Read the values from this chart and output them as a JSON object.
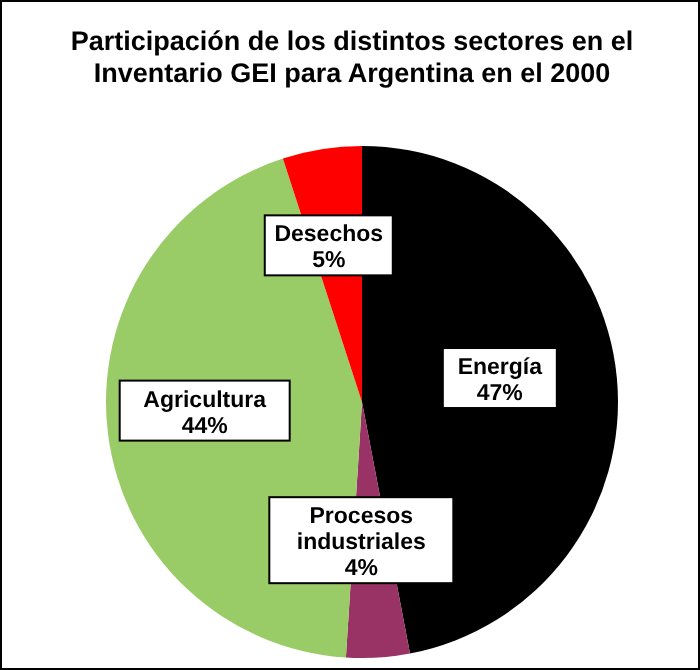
{
  "chart_data": {
    "type": "pie",
    "title": "Participación de los distintos sectores en el Inventario GEI para Argentina en el 2000",
    "categories": [
      "Energía",
      "Procesos industriales",
      "Agricultura",
      "Desechos"
    ],
    "values": [
      47,
      4,
      44,
      5
    ],
    "colors": [
      "#000000",
      "#993366",
      "#99cc66",
      "#ff0000"
    ],
    "value_labels": [
      "47%",
      "4%",
      "44%",
      "5%"
    ],
    "legend": false
  }
}
